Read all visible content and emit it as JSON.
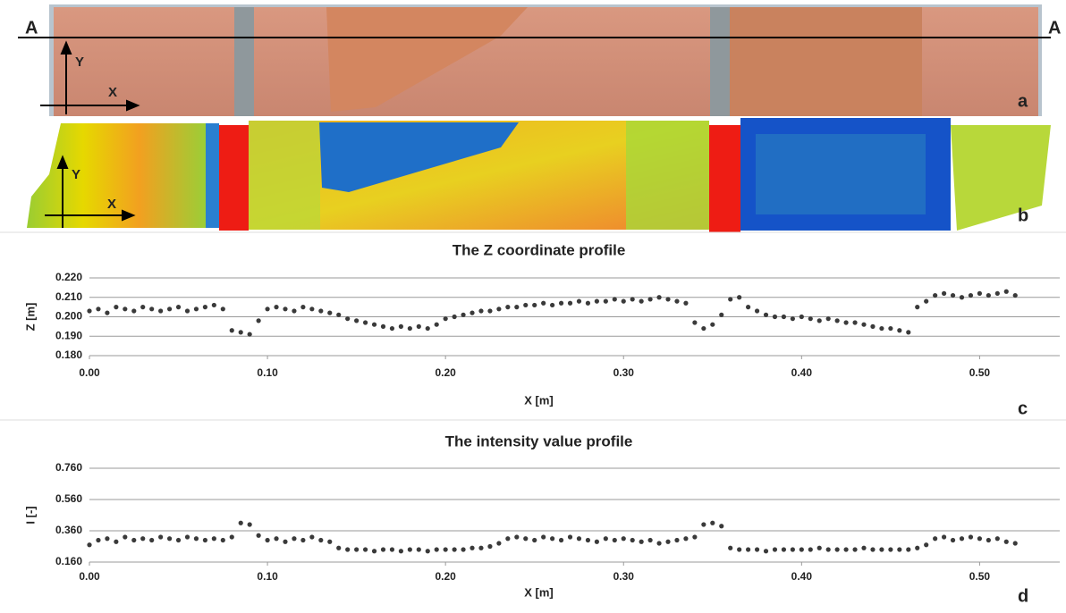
{
  "figure": {
    "section_marks": [
      "A",
      "A"
    ],
    "photo_axes": [
      "Y",
      "X"
    ],
    "map_axes": [
      "Y",
      "X"
    ],
    "panel_labels": [
      "a",
      "b",
      "c",
      "d"
    ]
  },
  "chart_data": [
    {
      "type": "scatter",
      "title": "The Z coordinate profile",
      "x_label": "X [m]",
      "y_label": "Z [m]",
      "color": "#3a3a3a",
      "grid": true,
      "xlim": [
        0,
        0.545
      ],
      "ylim": [
        0.18,
        0.22
      ],
      "xticks": [
        {
          "value": 0,
          "label": "0.00"
        },
        {
          "value": 0.1,
          "label": "0.10"
        },
        {
          "value": 0.2,
          "label": "0.20"
        },
        {
          "value": 0.3,
          "label": "0.30"
        },
        {
          "value": 0.4,
          "label": "0.40"
        },
        {
          "value": 0.5,
          "label": "0.50"
        }
      ],
      "yticks": [
        {
          "value": 0.18,
          "label": "0.180"
        },
        {
          "value": 0.19,
          "label": "0.190"
        },
        {
          "value": 0.2,
          "label": "0.200"
        },
        {
          "value": 0.21,
          "label": "0.210"
        },
        {
          "value": 0.22,
          "label": "0.220"
        }
      ],
      "x": [
        0,
        0.005,
        0.01,
        0.015,
        0.02,
        0.025,
        0.03,
        0.035,
        0.04,
        0.045,
        0.05,
        0.055,
        0.06,
        0.065,
        0.07,
        0.075,
        0.08,
        0.085,
        0.09,
        0.095,
        0.1,
        0.105,
        0.11,
        0.115,
        0.12,
        0.125,
        0.13,
        0.135,
        0.14,
        0.145,
        0.15,
        0.155,
        0.16,
        0.165,
        0.17,
        0.175,
        0.18,
        0.185,
        0.19,
        0.195,
        0.2,
        0.205,
        0.21,
        0.215,
        0.22,
        0.225,
        0.23,
        0.235,
        0.24,
        0.245,
        0.25,
        0.255,
        0.26,
        0.265,
        0.27,
        0.275,
        0.28,
        0.285,
        0.29,
        0.295,
        0.3,
        0.305,
        0.31,
        0.315,
        0.32,
        0.325,
        0.33,
        0.335,
        0.34,
        0.345,
        0.35,
        0.355,
        0.36,
        0.365,
        0.37,
        0.375,
        0.38,
        0.385,
        0.39,
        0.395,
        0.4,
        0.405,
        0.41,
        0.415,
        0.42,
        0.425,
        0.43,
        0.435,
        0.44,
        0.445,
        0.45,
        0.455,
        0.46,
        0.465,
        0.47,
        0.475,
        0.48,
        0.485,
        0.49,
        0.495,
        0.5,
        0.505,
        0.51,
        0.515,
        0.52
      ],
      "values": [
        0.203,
        0.204,
        0.202,
        0.205,
        0.204,
        0.203,
        0.205,
        0.204,
        0.203,
        0.204,
        0.205,
        0.203,
        0.204,
        0.205,
        0.206,
        0.204,
        0.193,
        0.192,
        0.191,
        0.198,
        0.204,
        0.205,
        0.204,
        0.203,
        0.205,
        0.204,
        0.203,
        0.202,
        0.201,
        0.199,
        0.198,
        0.197,
        0.196,
        0.195,
        0.194,
        0.195,
        0.194,
        0.195,
        0.194,
        0.196,
        0.199,
        0.2,
        0.201,
        0.202,
        0.203,
        0.203,
        0.204,
        0.205,
        0.205,
        0.206,
        0.206,
        0.207,
        0.206,
        0.207,
        0.207,
        0.208,
        0.207,
        0.208,
        0.208,
        0.209,
        0.208,
        0.209,
        0.208,
        0.209,
        0.21,
        0.209,
        0.208,
        0.207,
        0.197,
        0.194,
        0.196,
        0.201,
        0.209,
        0.21,
        0.205,
        0.203,
        0.201,
        0.2,
        0.2,
        0.199,
        0.2,
        0.199,
        0.198,
        0.199,
        0.198,
        0.197,
        0.197,
        0.196,
        0.195,
        0.194,
        0.194,
        0.193,
        0.192,
        0.205,
        0.208,
        0.211,
        0.212,
        0.211,
        0.21,
        0.211,
        0.212,
        0.211,
        0.212,
        0.213,
        0.211
      ]
    },
    {
      "type": "scatter",
      "title": "The intensity value profile",
      "x_label": "X [m]",
      "y_label": "I [-]",
      "color": "#3a3a3a",
      "grid": true,
      "xlim": [
        0,
        0.545
      ],
      "ylim": [
        0.16,
        0.76
      ],
      "xticks": [
        {
          "value": 0,
          "label": "0.00"
        },
        {
          "value": 0.1,
          "label": "0.10"
        },
        {
          "value": 0.2,
          "label": "0.20"
        },
        {
          "value": 0.3,
          "label": "0.30"
        },
        {
          "value": 0.4,
          "label": "0.40"
        },
        {
          "value": 0.5,
          "label": "0.50"
        }
      ],
      "yticks": [
        {
          "value": 0.16,
          "label": "0.160"
        },
        {
          "value": 0.36,
          "label": "0.360"
        },
        {
          "value": 0.56,
          "label": "0.560"
        },
        {
          "value": 0.76,
          "label": "0.760"
        }
      ],
      "x": [
        0,
        0.005,
        0.01,
        0.015,
        0.02,
        0.025,
        0.03,
        0.035,
        0.04,
        0.045,
        0.05,
        0.055,
        0.06,
        0.065,
        0.07,
        0.075,
        0.08,
        0.085,
        0.09,
        0.095,
        0.1,
        0.105,
        0.11,
        0.115,
        0.12,
        0.125,
        0.13,
        0.135,
        0.14,
        0.145,
        0.15,
        0.155,
        0.16,
        0.165,
        0.17,
        0.175,
        0.18,
        0.185,
        0.19,
        0.195,
        0.2,
        0.205,
        0.21,
        0.215,
        0.22,
        0.225,
        0.23,
        0.235,
        0.24,
        0.245,
        0.25,
        0.255,
        0.26,
        0.265,
        0.27,
        0.275,
        0.28,
        0.285,
        0.29,
        0.295,
        0.3,
        0.305,
        0.31,
        0.315,
        0.32,
        0.325,
        0.33,
        0.335,
        0.34,
        0.345,
        0.35,
        0.355,
        0.36,
        0.365,
        0.37,
        0.375,
        0.38,
        0.385,
        0.39,
        0.395,
        0.4,
        0.405,
        0.41,
        0.415,
        0.42,
        0.425,
        0.43,
        0.435,
        0.44,
        0.445,
        0.45,
        0.455,
        0.46,
        0.465,
        0.47,
        0.475,
        0.48,
        0.485,
        0.49,
        0.495,
        0.5,
        0.505,
        0.51,
        0.515,
        0.52
      ],
      "values": [
        0.27,
        0.3,
        0.31,
        0.29,
        0.32,
        0.3,
        0.31,
        0.3,
        0.32,
        0.31,
        0.3,
        0.32,
        0.31,
        0.3,
        0.31,
        0.3,
        0.32,
        0.41,
        0.4,
        0.33,
        0.3,
        0.31,
        0.29,
        0.31,
        0.3,
        0.32,
        0.3,
        0.29,
        0.25,
        0.24,
        0.24,
        0.24,
        0.23,
        0.24,
        0.24,
        0.23,
        0.24,
        0.24,
        0.23,
        0.24,
        0.24,
        0.24,
        0.24,
        0.25,
        0.25,
        0.26,
        0.28,
        0.31,
        0.32,
        0.31,
        0.3,
        0.32,
        0.31,
        0.3,
        0.32,
        0.31,
        0.3,
        0.29,
        0.31,
        0.3,
        0.31,
        0.3,
        0.29,
        0.3,
        0.28,
        0.29,
        0.3,
        0.31,
        0.32,
        0.4,
        0.41,
        0.39,
        0.25,
        0.24,
        0.24,
        0.24,
        0.23,
        0.24,
        0.24,
        0.24,
        0.24,
        0.24,
        0.25,
        0.24,
        0.24,
        0.24,
        0.24,
        0.25,
        0.24,
        0.24,
        0.24,
        0.24,
        0.24,
        0.25,
        0.27,
        0.31,
        0.32,
        0.3,
        0.31,
        0.32,
        0.31,
        0.3,
        0.31,
        0.29,
        0.28
      ]
    }
  ]
}
